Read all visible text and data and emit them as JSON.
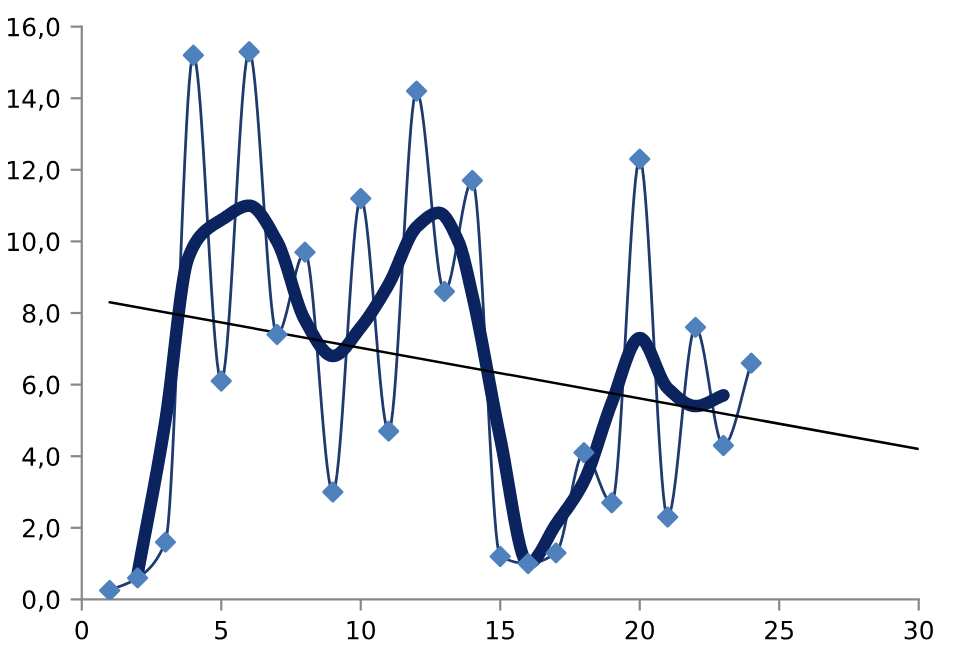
{
  "chart_data": {
    "type": "line",
    "xlim": [
      0,
      30
    ],
    "ylim": [
      0,
      16
    ],
    "xticks": [
      0,
      5,
      10,
      15,
      20,
      25,
      30
    ],
    "yticks": [
      {
        "value": 0,
        "label": "0,0"
      },
      {
        "value": 2,
        "label": "2,0"
      },
      {
        "value": 4,
        "label": "4,0"
      },
      {
        "value": 6,
        "label": "6,0"
      },
      {
        "value": 8,
        "label": "8,0"
      },
      {
        "value": 10,
        "label": "10,0"
      },
      {
        "value": 12,
        "label": "12,0"
      },
      {
        "value": 14,
        "label": "14,0"
      },
      {
        "value": 16,
        "label": "16,0"
      }
    ],
    "grid": false,
    "legend": false,
    "series": [
      {
        "color": "#1f3a6e",
        "marker": "diamond",
        "x": [
          1,
          2,
          3,
          4,
          5,
          6,
          7,
          8,
          9,
          10,
          11,
          12,
          13,
          14,
          15,
          16,
          17,
          18,
          19,
          20,
          21,
          22,
          23,
          24
        ],
        "values": [
          0.25,
          0.6,
          1.6,
          15.2,
          6.1,
          15.3,
          7.4,
          9.7,
          3.0,
          11.2,
          4.7,
          14.2,
          8.6,
          11.7,
          1.2,
          1.0,
          1.3,
          4.1,
          2.7,
          12.3,
          2.3,
          7.6,
          4.3,
          6.6
        ]
      },
      {
        "color": "#0b2460",
        "marker": "none",
        "x": [
          2,
          3,
          3.8,
          4.3,
          5,
          6,
          7,
          8,
          9,
          10,
          11,
          12,
          12.8,
          13.5,
          14,
          15,
          16,
          17,
          18,
          19,
          20,
          21,
          22,
          23
        ],
        "values": [
          0.7,
          5.0,
          9.5,
          10.2,
          10.6,
          11.0,
          10.0,
          7.8,
          6.8,
          7.6,
          8.8,
          10.4,
          10.8,
          10.0,
          8.5,
          4.5,
          1.0,
          2.1,
          3.3,
          5.5,
          7.3,
          5.9,
          5.4,
          5.7
        ]
      },
      {
        "color": "#000000",
        "marker": "none",
        "x": [
          1,
          30
        ],
        "values": [
          8.3,
          4.2
        ]
      }
    ]
  }
}
